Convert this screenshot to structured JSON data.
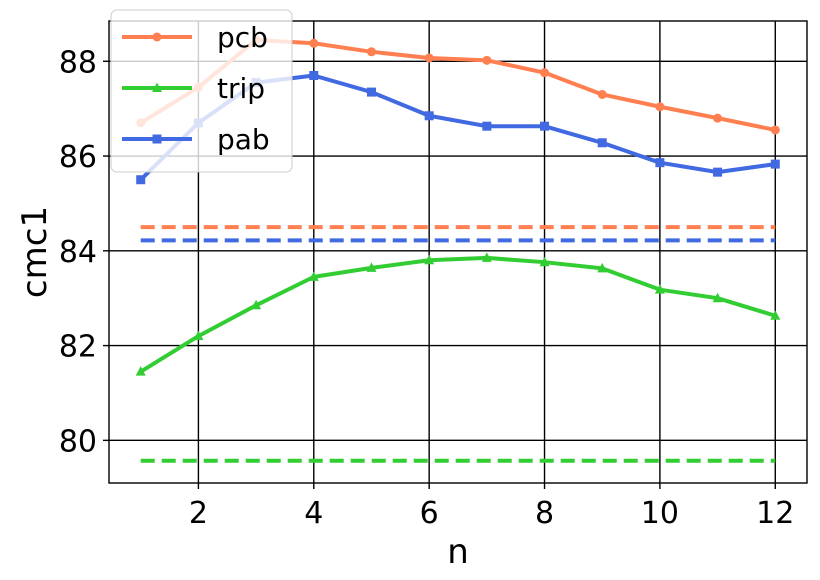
{
  "chart_data": {
    "type": "line",
    "title": "",
    "xlabel": "n",
    "ylabel": "cmc1",
    "xlim": [
      0.45,
      12.55
    ],
    "ylim": [
      79.1,
      88.85
    ],
    "x_ticks": [
      2,
      4,
      6,
      8,
      10,
      12
    ],
    "x_tick_labels": [
      "2",
      "4",
      "6",
      "8",
      "10",
      "12"
    ],
    "y_ticks": [
      80,
      82,
      84,
      86,
      88
    ],
    "y_tick_labels": [
      "80",
      "82",
      "84",
      "86",
      "88"
    ],
    "grid": true,
    "legend_position": "upper-left",
    "x": [
      1,
      2,
      3,
      4,
      5,
      6,
      7,
      8,
      9,
      10,
      11,
      12
    ],
    "series": [
      {
        "name": "pcb",
        "color": "#FF7F50",
        "marker": "circle",
        "values": [
          86.7,
          87.45,
          88.45,
          88.38,
          88.2,
          88.07,
          88.02,
          87.76,
          87.3,
          87.04,
          86.8,
          86.55
        ],
        "baseline": 84.5
      },
      {
        "name": "trip",
        "color": "#32CD32",
        "marker": "triangle",
        "values": [
          81.45,
          82.2,
          82.85,
          83.45,
          83.64,
          83.8,
          83.85,
          83.76,
          83.63,
          83.18,
          83.0,
          82.63
        ],
        "baseline": 79.57
      },
      {
        "name": "pab",
        "color": "#4169E1",
        "marker": "square",
        "values": [
          85.5,
          86.7,
          87.55,
          87.7,
          87.35,
          86.85,
          86.63,
          86.63,
          86.28,
          85.86,
          85.66,
          85.83
        ],
        "baseline": 84.22
      }
    ]
  }
}
